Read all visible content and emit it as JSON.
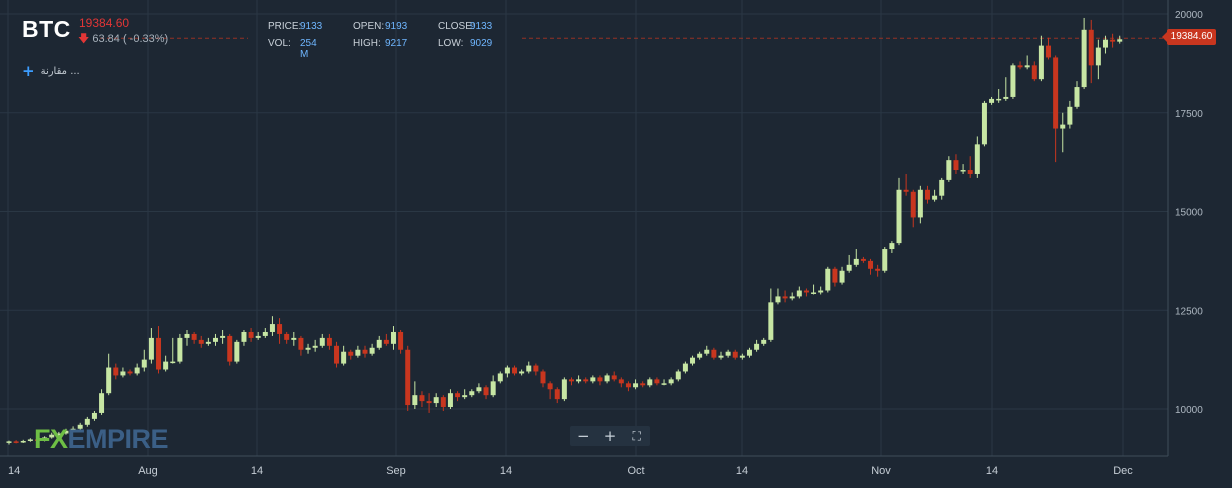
{
  "header": {
    "symbol": "BTC",
    "last_price": "19384.60",
    "change": "63.84 ( -0.33%)",
    "change_direction": "down"
  },
  "ohlc": [
    {
      "label": "PRICE:",
      "value": "9133"
    },
    {
      "label": "OPEN:",
      "value": "9193"
    },
    {
      "label": "CLOSE:",
      "value": "9133"
    },
    {
      "label": "VOL:",
      "value": "254 M"
    },
    {
      "label": "HIGH:",
      "value": "9217"
    },
    {
      "label": "LOW:",
      "value": "9029"
    }
  ],
  "compare_label": "مقارنة ...",
  "price_tag": "19384.60",
  "logo": {
    "fx": "FX",
    "empire": "EMPIRE"
  },
  "zoom_controls": {
    "minus": "−",
    "plus": "+",
    "fit": "⛶"
  },
  "colors": {
    "background": "#1d2733",
    "up": "#c7e6a4",
    "down": "#c8361f",
    "grid": "#2a3744",
    "accent": "#3c9dff"
  },
  "chart_data": {
    "type": "candlestick",
    "y_axis": {
      "min": 9000,
      "max": 20000,
      "ticks": [
        10000,
        12500,
        15000,
        17500,
        20000
      ]
    },
    "x_axis": {
      "tick_labels": [
        "14",
        "Aug",
        "14",
        "Sep",
        "14",
        "Oct",
        "14",
        "Nov",
        "14",
        "Dec"
      ]
    },
    "last_price_line": 19384.6,
    "candles": [
      [
        9150,
        9180,
        9100,
        9200
      ],
      [
        9180,
        9160,
        9130,
        9210
      ],
      [
        9160,
        9190,
        9140,
        9220
      ],
      [
        9190,
        9230,
        9170,
        9260
      ],
      [
        9230,
        9200,
        9180,
        9250
      ],
      [
        9200,
        9280,
        9180,
        9310
      ],
      [
        9280,
        9350,
        9250,
        9400
      ],
      [
        9350,
        9380,
        9320,
        9420
      ],
      [
        9380,
        9450,
        9350,
        9500
      ],
      [
        9450,
        9500,
        9420,
        9560
      ],
      [
        9500,
        9600,
        9460,
        9650
      ],
      [
        9600,
        9750,
        9550,
        9800
      ],
      [
        9750,
        9900,
        9700,
        9950
      ],
      [
        9900,
        10400,
        9850,
        10500
      ],
      [
        10400,
        11050,
        10350,
        11400
      ],
      [
        11050,
        10850,
        10750,
        11150
      ],
      [
        10850,
        10950,
        10800,
        11050
      ],
      [
        10950,
        10900,
        10850,
        11000
      ],
      [
        10900,
        11050,
        10850,
        11150
      ],
      [
        11050,
        11250,
        10950,
        11500
      ],
      [
        11250,
        11800,
        11150,
        12050
      ],
      [
        11800,
        11000,
        10900,
        12100
      ],
      [
        11000,
        11200,
        10950,
        11350
      ],
      [
        11200,
        11200,
        11150,
        11800
      ],
      [
        11200,
        11800,
        11150,
        11900
      ],
      [
        11800,
        11900,
        11600,
        12000
      ],
      [
        11900,
        11750,
        11650,
        11950
      ],
      [
        11750,
        11650,
        11550,
        11850
      ],
      [
        11650,
        11700,
        11600,
        11800
      ],
      [
        11700,
        11800,
        11600,
        11900
      ],
      [
        11800,
        11850,
        11650,
        12000
      ],
      [
        11850,
        11200,
        11100,
        11900
      ],
      [
        11200,
        11700,
        11150,
        11750
      ],
      [
        11700,
        11950,
        11600,
        12000
      ],
      [
        11950,
        11800,
        11700,
        12050
      ],
      [
        11800,
        11850,
        11750,
        11950
      ],
      [
        11850,
        11950,
        11800,
        12050
      ],
      [
        11950,
        12150,
        11850,
        12350
      ],
      [
        12150,
        11900,
        11650,
        12300
      ],
      [
        11900,
        11750,
        11650,
        11950
      ],
      [
        11750,
        11800,
        11600,
        11950
      ],
      [
        11800,
        11500,
        11350,
        11850
      ],
      [
        11500,
        11550,
        11400,
        11650
      ],
      [
        11550,
        11600,
        11450,
        11750
      ],
      [
        11600,
        11800,
        11550,
        11900
      ],
      [
        11800,
        11600,
        11500,
        11900
      ],
      [
        11600,
        11150,
        11050,
        11700
      ],
      [
        11150,
        11450,
        11100,
        11600
      ],
      [
        11450,
        11350,
        11250,
        11500
      ],
      [
        11350,
        11500,
        11300,
        11600
      ],
      [
        11500,
        11400,
        11300,
        11600
      ],
      [
        11400,
        11550,
        11350,
        11650
      ],
      [
        11550,
        11750,
        11500,
        11850
      ],
      [
        11750,
        11650,
        11600,
        11900
      ],
      [
        11650,
        11950,
        11500,
        12100
      ],
      [
        11950,
        11500,
        11400,
        12000
      ],
      [
        11500,
        10100,
        9950,
        11600
      ],
      [
        10100,
        10350,
        10000,
        10700
      ],
      [
        10350,
        10200,
        10050,
        10450
      ],
      [
        10200,
        10150,
        9900,
        10400
      ],
      [
        10150,
        10300,
        10050,
        10400
      ],
      [
        10300,
        10050,
        9950,
        10350
      ],
      [
        10050,
        10400,
        10000,
        10500
      ],
      [
        10400,
        10300,
        10200,
        10450
      ],
      [
        10300,
        10350,
        10250,
        10500
      ],
      [
        10350,
        10450,
        10300,
        10500
      ],
      [
        10450,
        10550,
        10400,
        10650
      ],
      [
        10550,
        10350,
        10250,
        10600
      ],
      [
        10350,
        10700,
        10300,
        10850
      ],
      [
        10700,
        10900,
        10650,
        10950
      ],
      [
        10900,
        11050,
        10800,
        11100
      ],
      [
        11050,
        10900,
        10850,
        11100
      ],
      [
        10900,
        10950,
        10850,
        11000
      ],
      [
        10950,
        11100,
        10900,
        11200
      ],
      [
        11100,
        10950,
        10850,
        11150
      ],
      [
        10950,
        10650,
        10550,
        11000
      ],
      [
        10650,
        10500,
        10250,
        10700
      ],
      [
        10500,
        10250,
        10150,
        10550
      ],
      [
        10250,
        10750,
        10200,
        10800
      ],
      [
        10750,
        10700,
        10600,
        10800
      ],
      [
        10700,
        10750,
        10650,
        10850
      ],
      [
        10750,
        10700,
        10650,
        10800
      ],
      [
        10700,
        10800,
        10650,
        10850
      ],
      [
        10800,
        10700,
        10600,
        10850
      ],
      [
        10700,
        10850,
        10650,
        10900
      ],
      [
        10850,
        10750,
        10700,
        10950
      ],
      [
        10750,
        10650,
        10550,
        10800
      ],
      [
        10650,
        10550,
        10450,
        10700
      ],
      [
        10550,
        10650,
        10500,
        10750
      ],
      [
        10650,
        10600,
        10550,
        10700
      ],
      [
        10600,
        10750,
        10550,
        10800
      ],
      [
        10750,
        10650,
        10600,
        10800
      ],
      [
        10650,
        10650,
        10600,
        10750
      ],
      [
        10650,
        10750,
        10600,
        10800
      ],
      [
        10750,
        10950,
        10700,
        11000
      ],
      [
        10950,
        11150,
        10900,
        11200
      ],
      [
        11150,
        11300,
        11100,
        11350
      ],
      [
        11300,
        11400,
        11250,
        11450
      ],
      [
        11400,
        11500,
        11350,
        11600
      ],
      [
        11500,
        11300,
        11250,
        11550
      ],
      [
        11300,
        11350,
        11250,
        11450
      ],
      [
        11350,
        11450,
        11300,
        11500
      ],
      [
        11450,
        11300,
        11250,
        11500
      ],
      [
        11300,
        11350,
        11250,
        11400
      ],
      [
        11350,
        11500,
        11300,
        11550
      ],
      [
        11500,
        11650,
        11450,
        11750
      ],
      [
        11650,
        11750,
        11600,
        11800
      ],
      [
        11750,
        12700,
        11700,
        13050
      ],
      [
        12700,
        12850,
        12650,
        13050
      ],
      [
        12850,
        12800,
        12700,
        13000
      ],
      [
        12800,
        12850,
        12750,
        12950
      ],
      [
        12850,
        13000,
        12800,
        13100
      ],
      [
        13000,
        12950,
        12850,
        13050
      ],
      [
        12950,
        12950,
        12900,
        13150
      ],
      [
        12950,
        13000,
        12900,
        13100
      ],
      [
        13000,
        13550,
        12950,
        13600
      ],
      [
        13550,
        13200,
        13100,
        13600
      ],
      [
        13200,
        13500,
        13150,
        13600
      ],
      [
        13500,
        13650,
        13450,
        13900
      ],
      [
        13650,
        13800,
        13600,
        14050
      ],
      [
        13800,
        13750,
        13700,
        13850
      ],
      [
        13750,
        13550,
        13400,
        13800
      ],
      [
        13550,
        13500,
        13350,
        13650
      ],
      [
        13500,
        14050,
        13450,
        14100
      ],
      [
        14050,
        14200,
        13950,
        14250
      ],
      [
        14200,
        15550,
        14150,
        15850
      ],
      [
        15550,
        15500,
        15400,
        15950
      ],
      [
        15500,
        14850,
        14600,
        15550
      ],
      [
        14850,
        15550,
        14700,
        15650
      ],
      [
        15550,
        15300,
        15200,
        15650
      ],
      [
        15300,
        15400,
        15250,
        15550
      ],
      [
        15400,
        15800,
        15300,
        15850
      ],
      [
        15800,
        16300,
        15750,
        16400
      ],
      [
        16300,
        16050,
        15950,
        16450
      ],
      [
        16050,
        16050,
        15950,
        16200
      ],
      [
        16050,
        15950,
        15850,
        16400
      ],
      [
        15950,
        16700,
        15850,
        16900
      ],
      [
        16700,
        17750,
        16650,
        17800
      ],
      [
        17750,
        17850,
        17700,
        17900
      ],
      [
        17850,
        17850,
        17750,
        18100
      ],
      [
        17850,
        17900,
        17800,
        18400
      ],
      [
        17900,
        18700,
        17850,
        18750
      ],
      [
        18700,
        18650,
        18600,
        18800
      ],
      [
        18650,
        18700,
        18600,
        18950
      ],
      [
        18700,
        18350,
        18300,
        18800
      ],
      [
        18350,
        19200,
        18300,
        19450
      ],
      [
        19200,
        18900,
        18850,
        19400
      ],
      [
        18900,
        17100,
        16250,
        18950
      ],
      [
        17100,
        17200,
        16500,
        17500
      ],
      [
        17200,
        17650,
        17100,
        17800
      ],
      [
        17650,
        18150,
        17600,
        18300
      ],
      [
        18150,
        19600,
        18100,
        19900
      ],
      [
        19600,
        18700,
        18250,
        19850
      ],
      [
        18700,
        19150,
        18350,
        19350
      ],
      [
        19150,
        19350,
        19000,
        19450
      ],
      [
        19350,
        19300,
        19150,
        19500
      ],
      [
        19300,
        19360,
        19250,
        19450
      ]
    ]
  }
}
